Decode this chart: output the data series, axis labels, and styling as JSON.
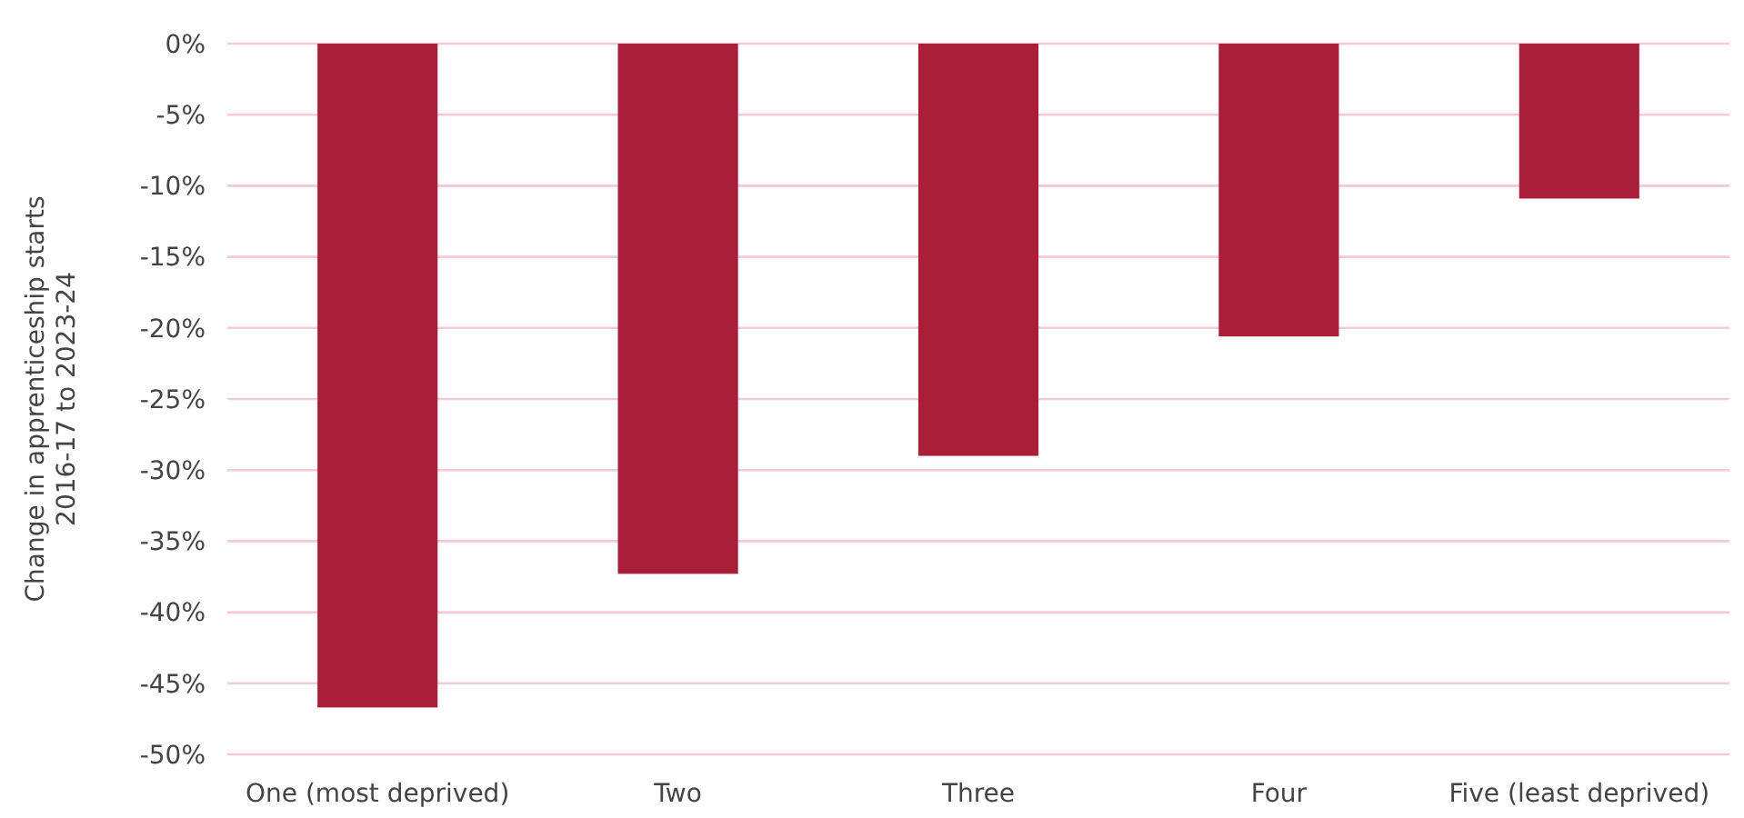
{
  "chart_data": {
    "type": "bar",
    "ylabel": "Change in apprenticeship starts\n2016-17 to 2023-24",
    "categories": [
      "One (most deprived)",
      "Two",
      "Three",
      "Four",
      "Five (least deprived)"
    ],
    "values": [
      -46.7,
      -37.3,
      -29.0,
      -20.6,
      -10.9
    ],
    "color": "#a91f3a",
    "ylim": [
      -50,
      0
    ],
    "yticks": [
      {
        "value": 0,
        "label": "0%"
      },
      {
        "value": -5,
        "label": "-5%"
      },
      {
        "value": -10,
        "label": "-10%"
      },
      {
        "value": -15,
        "label": "-15%"
      },
      {
        "value": -20,
        "label": "-20%"
      },
      {
        "value": -25,
        "label": "-25%"
      },
      {
        "value": -30,
        "label": "-30%"
      },
      {
        "value": -35,
        "label": "-35%"
      },
      {
        "value": -40,
        "label": "-40%"
      },
      {
        "value": -45,
        "label": "-45%"
      },
      {
        "value": -50,
        "label": "-50%"
      }
    ],
    "grid": true
  }
}
